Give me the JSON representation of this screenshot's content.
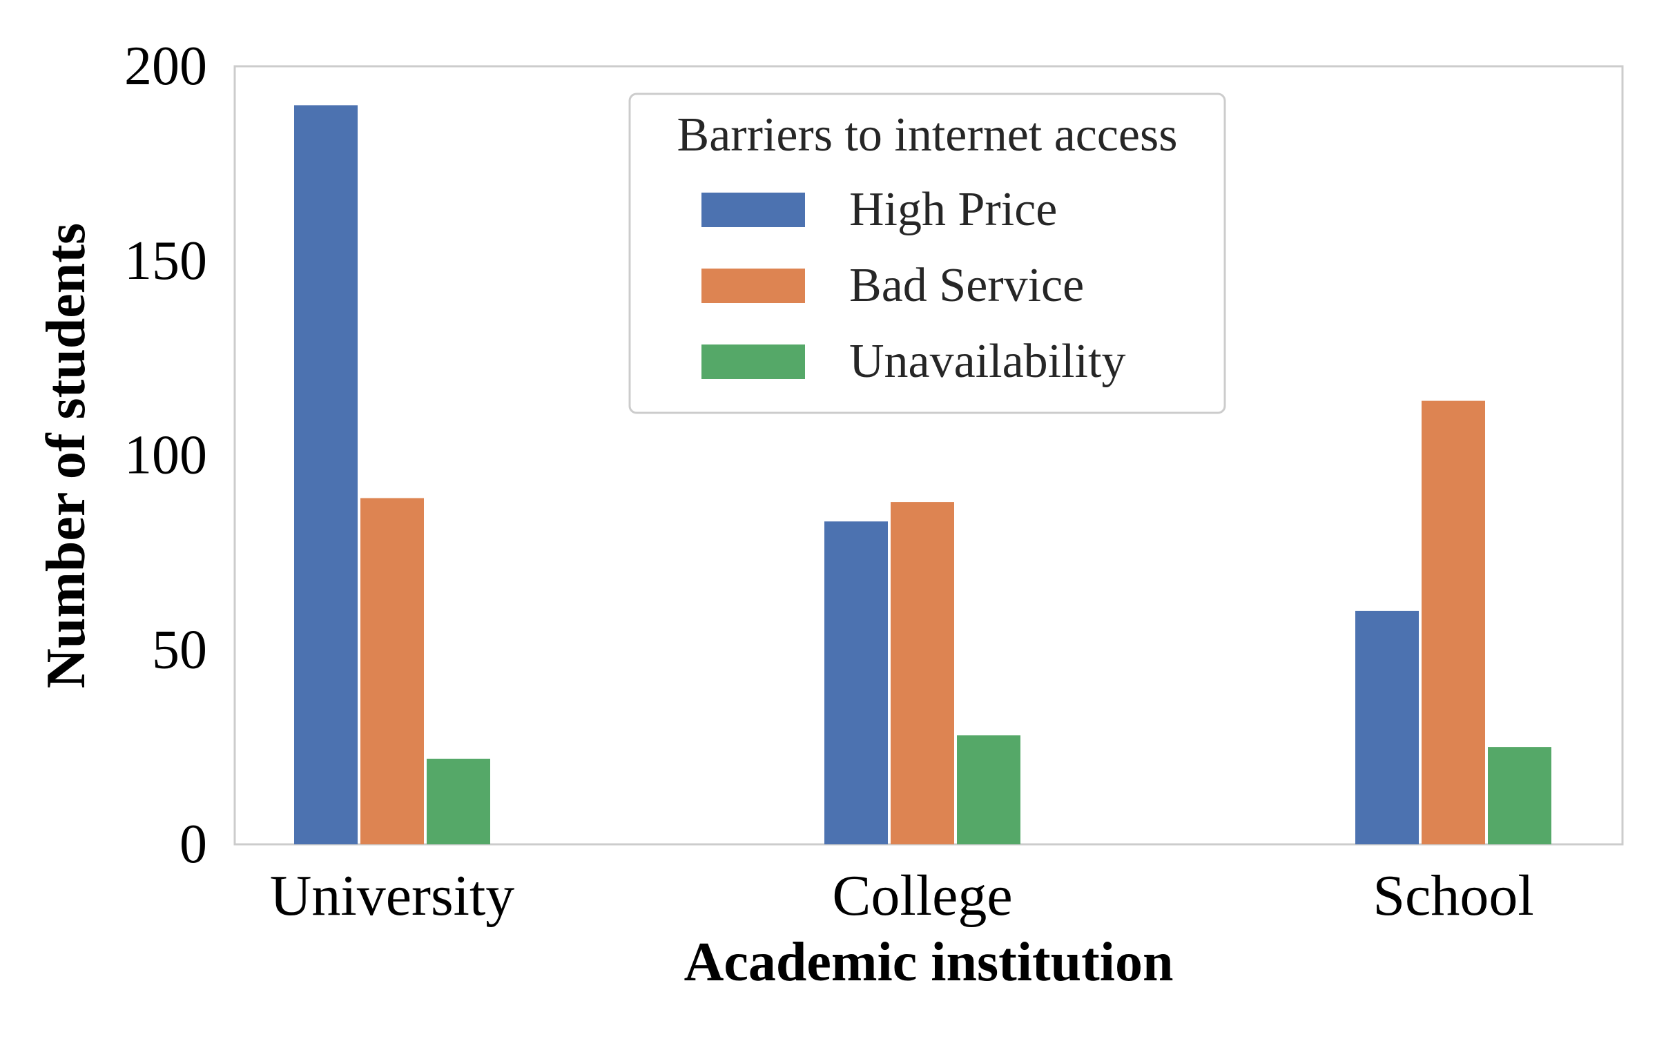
{
  "chart_data": {
    "type": "bar",
    "xlabel": "Academic institution",
    "ylabel": "Number of students",
    "ylim": [
      0,
      200
    ],
    "yticks": [
      "0",
      "50",
      "100",
      "150",
      "200"
    ],
    "categories": [
      "University",
      "College",
      "School"
    ],
    "series": [
      {
        "name": "High Price",
        "values": [
          190,
          83,
          60
        ],
        "color": "#4c72b0"
      },
      {
        "name": "Bad Service",
        "values": [
          89,
          88,
          114
        ],
        "color": "#dd8452"
      },
      {
        "name": "Unavailability",
        "values": [
          22,
          28,
          25
        ],
        "color": "#55a868"
      }
    ],
    "legend": {
      "title": "Barriers to internet access",
      "position": "upper-center"
    },
    "grid": false
  }
}
